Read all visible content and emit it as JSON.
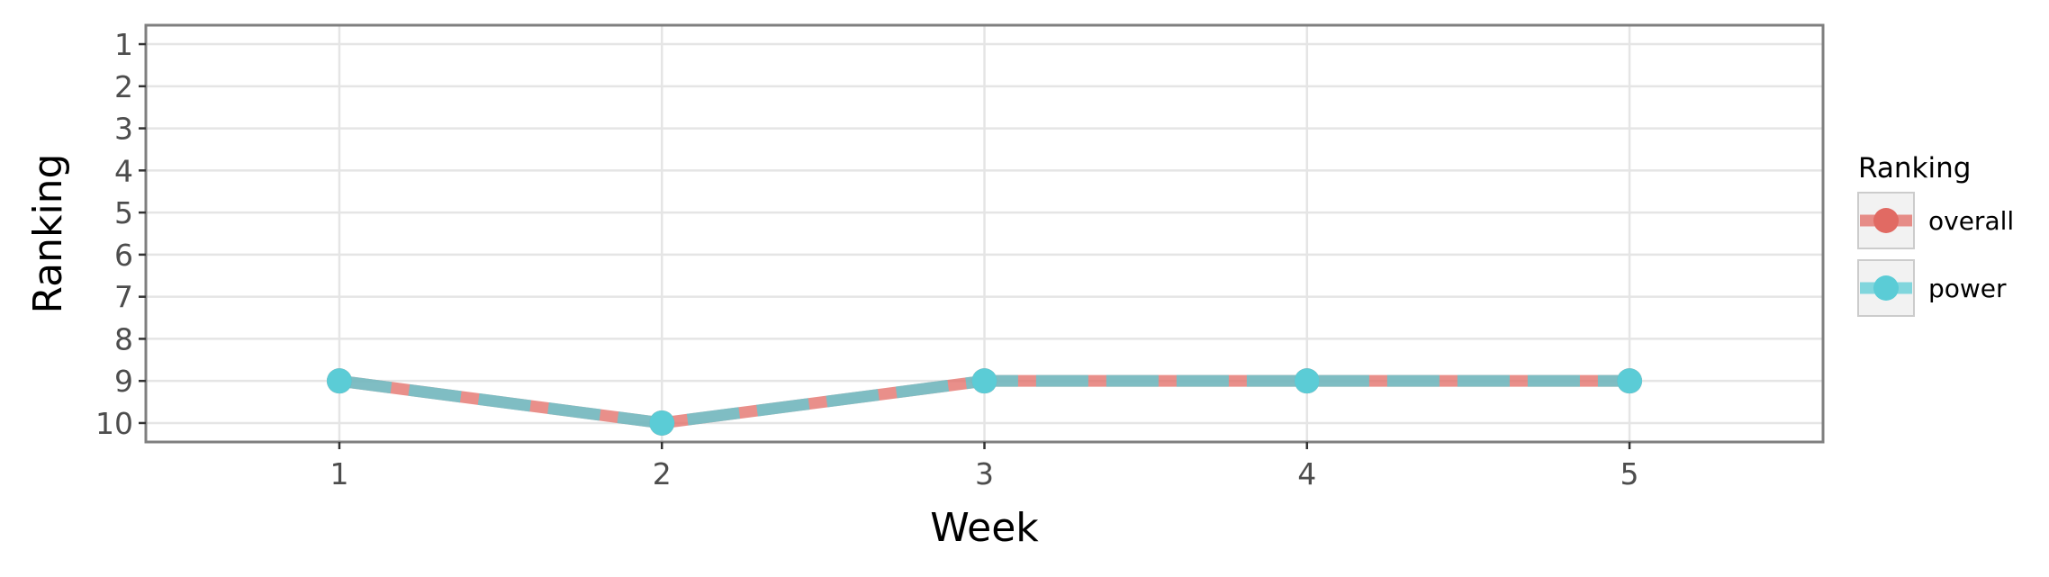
{
  "chart_data": {
    "type": "line",
    "xlabel": "Week",
    "ylabel": "Ranking",
    "x": [
      1,
      2,
      3,
      4,
      5
    ],
    "xlim": [
      0.4,
      5.6
    ],
    "ylim": [
      10.45,
      0.55
    ],
    "y_reversed": true,
    "x_ticks": [
      "1",
      "2",
      "3",
      "4",
      "5"
    ],
    "y_ticks": [
      "1",
      "2",
      "3",
      "4",
      "5",
      "6",
      "7",
      "8",
      "9",
      "10"
    ],
    "grid": true,
    "legend": {
      "title": "Ranking",
      "position": "right"
    },
    "series": [
      {
        "name": "overall",
        "values": [
          9,
          10,
          9,
          9,
          9
        ],
        "color": "#E16A63",
        "style": "solid"
      },
      {
        "name": "power",
        "values": [
          9,
          10,
          9,
          9,
          9
        ],
        "color": "#5BCCD6",
        "style": "dashed"
      }
    ]
  }
}
